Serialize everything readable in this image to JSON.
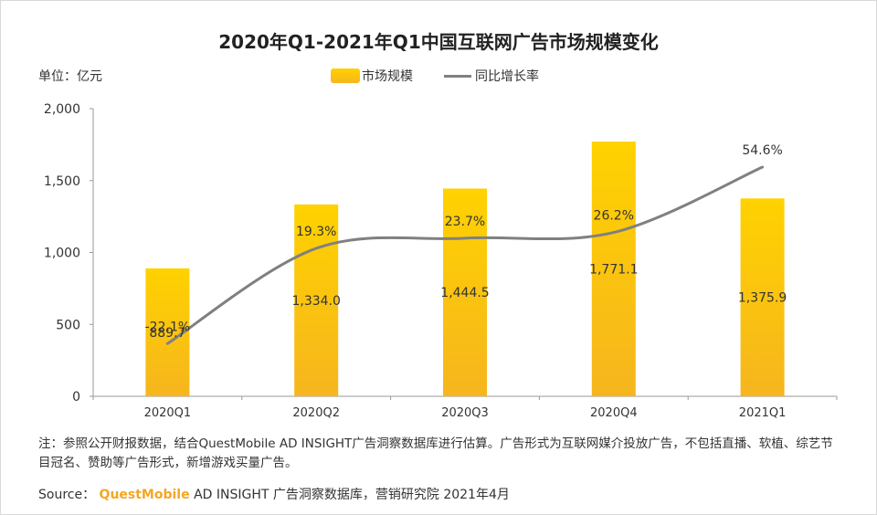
{
  "title": "2020年Q1-2021年Q1中国互联网广告市场规模变化",
  "unit_label": "单位：亿元",
  "legend": {
    "bar_label": "市场规模",
    "line_label": "同比增长率"
  },
  "colors": {
    "bar_top": "#ffd200",
    "bar_bottom": "#f6b51e",
    "line": "#808080",
    "axis": "#999999",
    "brand": "#f5a623"
  },
  "note": "注：参照公开财报数据，结合QuestMobile AD INSIGHT广告洞察数据库进行估算。广告形式为互联网媒介投放广告，不包括直播、软植、综艺节目冠名、赞助等广告形式，新增游戏买量广告。",
  "source": {
    "prefix": "Source：",
    "brand": "QuestMobile",
    "rest": "AD INSIGHT 广告洞察数据库，营销研究院 2021年4月"
  },
  "chart_data": {
    "type": "bar",
    "categories": [
      "2020Q1",
      "2020Q2",
      "2020Q3",
      "2020Q4",
      "2021Q1"
    ],
    "series": [
      {
        "name": "市场规模",
        "type": "bar",
        "values": [
          889.7,
          1334.0,
          1444.5,
          1771.1,
          1375.9
        ],
        "labels": [
          "889.7",
          "1,334.0",
          "1,444.5",
          "1,771.1",
          "1,375.9"
        ]
      },
      {
        "name": "同比增长率",
        "type": "line",
        "values": [
          -22.1,
          19.3,
          23.7,
          26.2,
          54.6
        ],
        "labels": [
          "-22.1%",
          "19.3%",
          "23.7%",
          "26.2%",
          "54.6%"
        ]
      }
    ],
    "ylim": [
      0,
      2000
    ],
    "yticks": [
      0,
      500,
      1000,
      1500,
      2000
    ],
    "ytick_labels": [
      "0",
      "500",
      "1,000",
      "1,500",
      "2,000"
    ]
  }
}
